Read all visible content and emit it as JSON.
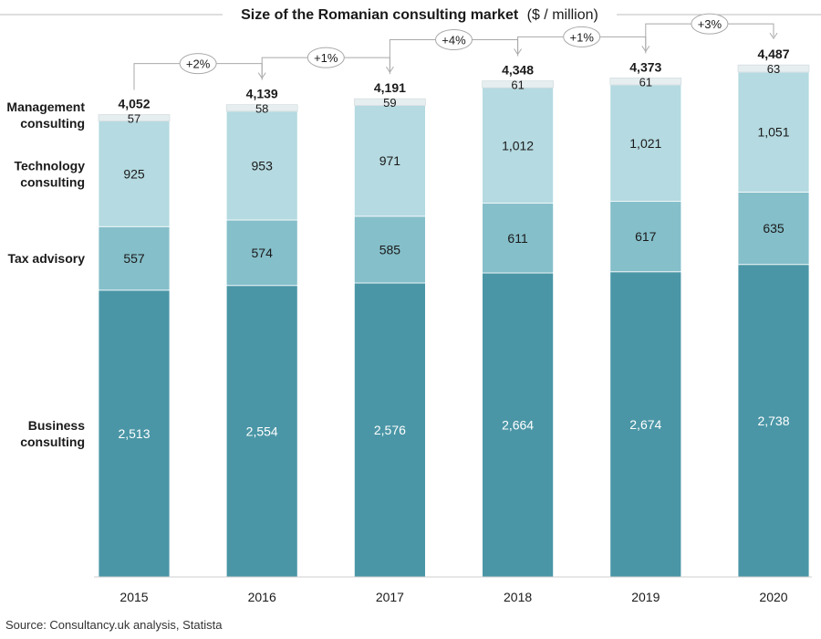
{
  "chart_data": {
    "type": "bar",
    "stacked": true,
    "title_main": "Size of the Romanian consulting market",
    "title_unit": "($ / million)",
    "categories": [
      "2015",
      "2016",
      "2017",
      "2018",
      "2019",
      "2020"
    ],
    "series": [
      {
        "name": "Business consulting",
        "values": [
          2513,
          2554,
          2576,
          2664,
          2674,
          2738
        ],
        "color": "#4a96a6"
      },
      {
        "name": "Tax advisory",
        "values": [
          557,
          574,
          585,
          611,
          617,
          635
        ],
        "color": "#85bfca"
      },
      {
        "name": "Technology consulting",
        "values": [
          925,
          953,
          971,
          1012,
          1021,
          1051
        ],
        "color": "#b5dae1"
      },
      {
        "name": "Management consulting",
        "values": [
          57,
          58,
          59,
          61,
          61,
          63
        ],
        "color": "#e6eef0"
      }
    ],
    "value_labels": [
      [
        "2,513",
        "2,554",
        "2,576",
        "2,664",
        "2,674",
        "2,738"
      ],
      [
        "557",
        "574",
        "585",
        "611",
        "617",
        "635"
      ],
      [
        "925",
        "953",
        "971",
        "1,012",
        "1,021",
        "1,051"
      ],
      [
        "57",
        "58",
        "59",
        "61",
        "61",
        "63"
      ]
    ],
    "series_labels": [
      [
        "Business",
        "consulting"
      ],
      [
        "Tax advisory"
      ],
      [
        "Technology",
        "consulting"
      ],
      [
        "Management",
        "consulting"
      ]
    ],
    "totals": [
      "4,052",
      "4,139",
      "4,191",
      "4,348",
      "4,373",
      "4,487"
    ],
    "growth": [
      "+2%",
      "+1%",
      "+4%",
      "+1%",
      "+3%"
    ],
    "ylim": [
      0,
      4800
    ],
    "grid": false
  },
  "source": "Source: Consultancy.uk analysis, Statista"
}
